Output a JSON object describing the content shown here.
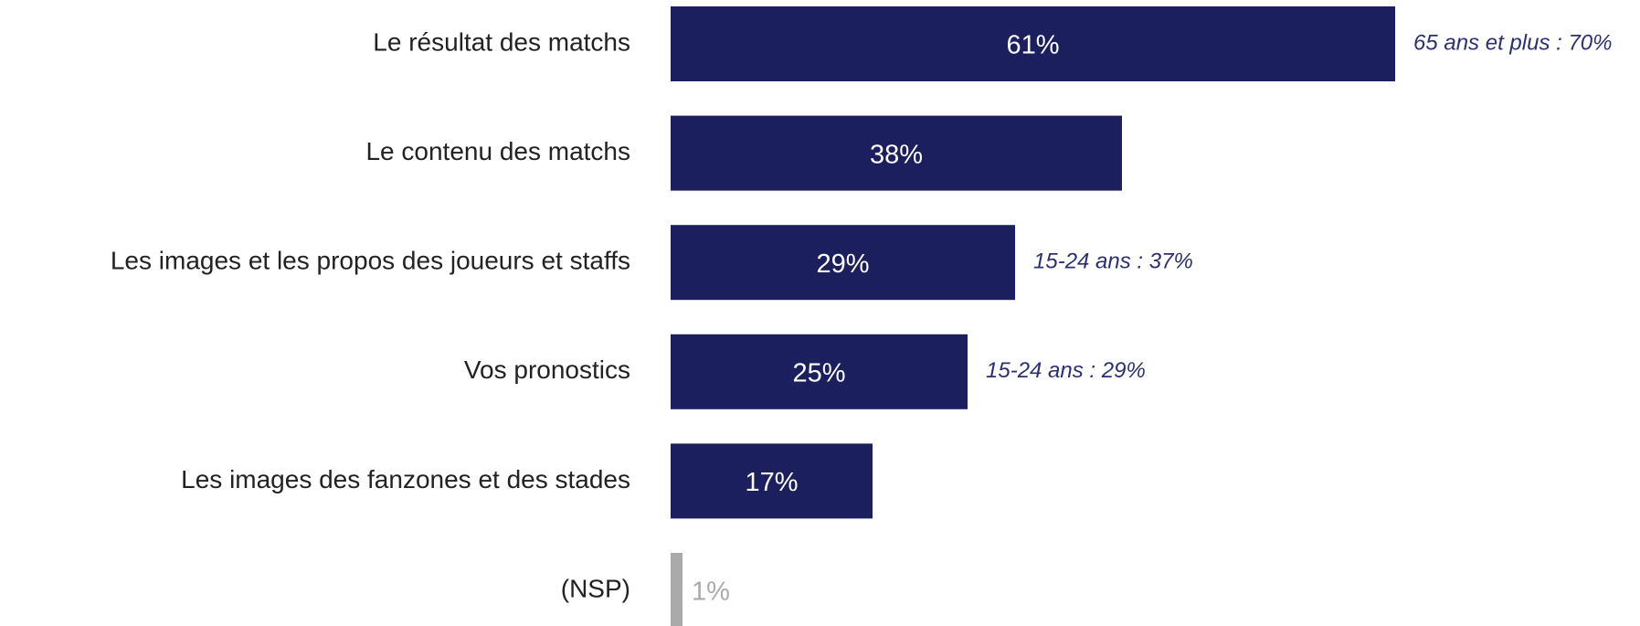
{
  "chart_data": {
    "type": "hbar",
    "categories": [
      "Le résultat des matchs",
      "Le contenu des matchs",
      "Les images et les propos des joueurs et staffs",
      "Vos pronostics",
      "Les images des fanzones et des stades",
      "(NSP)"
    ],
    "values": [
      61,
      38,
      29,
      25,
      17,
      1
    ],
    "value_labels": [
      "61%",
      "38%",
      "29%",
      "25%",
      "17%",
      "1%"
    ],
    "colors": [
      "#1b1f5e",
      "#1b1f5e",
      "#1b1f5e",
      "#1b1f5e",
      "#1b1f5e",
      "#aaaaaa"
    ],
    "notes": [
      "65 ans et plus : 70%",
      null,
      "15-24 ans : 37%",
      "15-24 ans : 29%",
      null,
      null
    ]
  }
}
